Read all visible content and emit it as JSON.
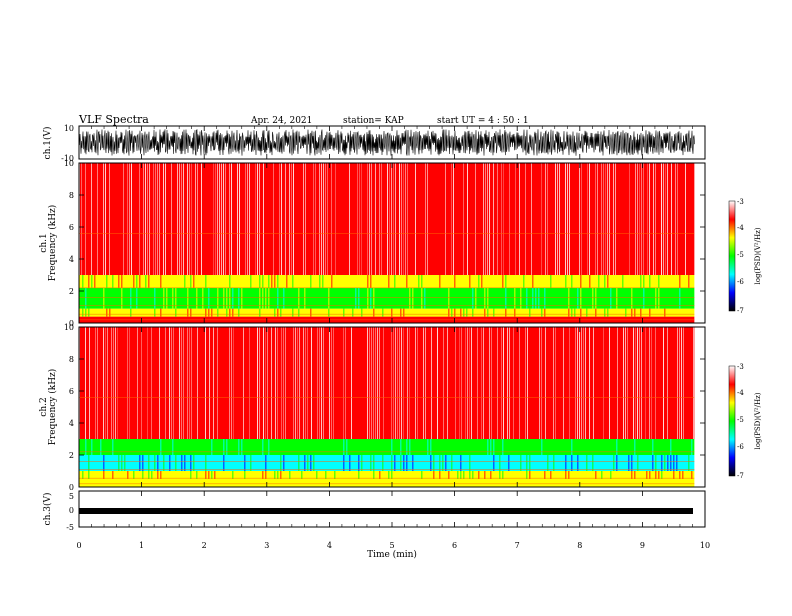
{
  "header": {
    "title": "VLF Spectra",
    "date": "Apr. 24, 2021",
    "station": "station= KAP",
    "start": "start  UT =   4 : 50 : 1"
  },
  "colorbar": {
    "label": "log(PSD)(V²/Hz)",
    "ticks": [
      "-3",
      "-4",
      "-5",
      "-6",
      "-7"
    ],
    "stops": [
      "#ffffff",
      "#ff0000",
      "#ffff00",
      "#00ff00",
      "#00ffff",
      "#0000ff",
      "#000000"
    ]
  },
  "chart_data": [
    {
      "type": "line",
      "panel": "ch1-waveform",
      "ylabel": "ch.1(V)",
      "ylim": [
        -10,
        10
      ],
      "ytick_labels": [
        "10",
        "-10"
      ],
      "x": [
        0,
        9.83
      ],
      "description_of_values": "dense oscillating waveform spanning roughly -8 to 8 V over the full interval"
    },
    {
      "type": "heatmap",
      "panel": "ch1-spectrogram",
      "ylabel": "Frequency  (kHz)",
      "ylabel2": "ch.1",
      "ylim": [
        0,
        10
      ],
      "ytick_labels": [
        "0",
        "2",
        "4",
        "6",
        "8",
        "10"
      ],
      "bands_khz": [
        {
          "from": 0,
          "to": 0.4,
          "level": -3.8
        },
        {
          "from": 0.4,
          "to": 0.9,
          "level": -4.6
        },
        {
          "from": 0.9,
          "to": 2.2,
          "level": -4.9
        },
        {
          "from": 2.2,
          "to": 3.0,
          "level": -4.2
        },
        {
          "from": 3.0,
          "to": 10,
          "level": -3.4
        }
      ]
    },
    {
      "type": "heatmap",
      "panel": "ch2-spectrogram",
      "ylabel": "Frequency  (kHz)",
      "ylabel2": "ch.2",
      "ylim": [
        0,
        10
      ],
      "ytick_labels": [
        "0",
        "2",
        "4",
        "6",
        "8",
        "10"
      ],
      "bands_khz": [
        {
          "from": 0,
          "to": 0.5,
          "level": -4.0
        },
        {
          "from": 0.5,
          "to": 1.0,
          "level": -4.6
        },
        {
          "from": 1.0,
          "to": 2.0,
          "level": -5.4
        },
        {
          "from": 2.0,
          "to": 3.0,
          "level": -5.3
        },
        {
          "from": 3.0,
          "to": 10,
          "level": -3.5
        }
      ]
    },
    {
      "type": "line",
      "panel": "ch3-waveform",
      "ylabel": "ch.3(V)",
      "ylim": [
        -5,
        5
      ],
      "ytick_labels": [
        "5",
        "0",
        "-5"
      ],
      "x": [
        0,
        9.83
      ],
      "description_of_values": "nearly constant dense band around -0.3 V"
    }
  ],
  "xaxis": {
    "label": "Time  (min)",
    "xlim": [
      0,
      10
    ],
    "ticks": [
      "0",
      "1",
      "2",
      "3",
      "4",
      "5",
      "6",
      "7",
      "8",
      "9",
      "10"
    ]
  }
}
